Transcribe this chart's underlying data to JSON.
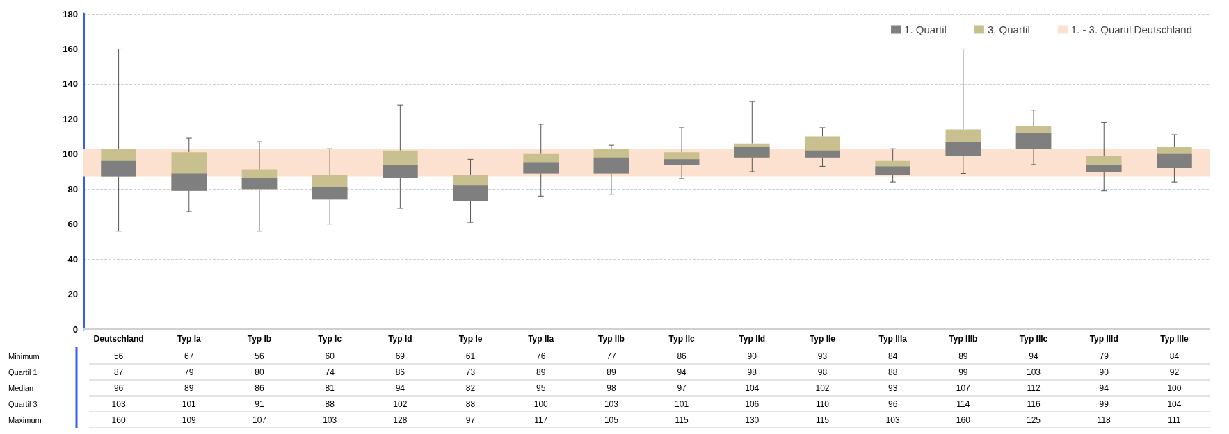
{
  "chart_data": {
    "type": "box",
    "categories": [
      "Deutschland",
      "Typ Ia",
      "Typ Ib",
      "Typ Ic",
      "Typ Id",
      "Typ Ie",
      "Typ IIa",
      "Typ IIb",
      "Typ IIc",
      "Typ IId",
      "Typ IIe",
      "Typ IIIa",
      "Typ IIIb",
      "Typ IIIc",
      "Typ IIId",
      "Typ IIIe"
    ],
    "series": [
      {
        "name": "1. Quartil",
        "color": "#7f7f7f",
        "boxes": [
          {
            "low": 56,
            "q1": 87,
            "median": 96,
            "q3": 103,
            "high": 160
          },
          {
            "low": 67,
            "q1": 79,
            "median": 89,
            "q3": 101,
            "high": 109
          },
          {
            "low": 56,
            "q1": 80,
            "median": 86,
            "q3": 91,
            "high": 107
          },
          {
            "low": 60,
            "q1": 74,
            "median": 81,
            "q3": 88,
            "high": 103
          },
          {
            "low": 69,
            "q1": 86,
            "median": 94,
            "q3": 102,
            "high": 128
          },
          {
            "low": 61,
            "q1": 73,
            "median": 82,
            "q3": 88,
            "high": 97
          },
          {
            "low": 76,
            "q1": 89,
            "median": 95,
            "q3": 100,
            "high": 117
          },
          {
            "low": 77,
            "q1": 89,
            "median": 98,
            "q3": 103,
            "high": 105
          },
          {
            "low": 86,
            "q1": 94,
            "median": 97,
            "q3": 101,
            "high": 115
          },
          {
            "low": 90,
            "q1": 98,
            "median": 104,
            "q3": 106,
            "high": 130
          },
          {
            "low": 93,
            "q1": 98,
            "median": 102,
            "q3": 110,
            "high": 115
          },
          {
            "low": 84,
            "q1": 88,
            "median": 93,
            "q3": 96,
            "high": 103
          },
          {
            "low": 89,
            "q1": 99,
            "median": 107,
            "q3": 114,
            "high": 160
          },
          {
            "low": 94,
            "q1": 103,
            "median": 112,
            "q3": 116,
            "high": 125
          },
          {
            "low": 79,
            "q1": 90,
            "median": 94,
            "q3": 99,
            "high": 118
          },
          {
            "low": 84,
            "q1": 92,
            "median": 100,
            "q3": 104,
            "high": 111
          }
        ]
      },
      {
        "name": "3. Quartil",
        "color": "#c8c08e",
        "boxes": [
          {
            "low": 56,
            "q1": 87,
            "median": 96,
            "q3": 103,
            "high": 160
          },
          {
            "low": 67,
            "q1": 79,
            "median": 89,
            "q3": 101,
            "high": 109
          },
          {
            "low": 56,
            "q1": 80,
            "median": 86,
            "q3": 91,
            "high": 107
          },
          {
            "low": 60,
            "q1": 74,
            "median": 81,
            "q3": 88,
            "high": 103
          },
          {
            "low": 69,
            "q1": 86,
            "median": 94,
            "q3": 102,
            "high": 128
          },
          {
            "low": 61,
            "q1": 73,
            "median": 82,
            "q3": 88,
            "high": 97
          },
          {
            "low": 76,
            "q1": 89,
            "median": 95,
            "q3": 100,
            "high": 117
          },
          {
            "low": 77,
            "q1": 89,
            "median": 98,
            "q3": 103,
            "high": 105
          },
          {
            "low": 86,
            "q1": 94,
            "median": 97,
            "q3": 101,
            "high": 115
          },
          {
            "low": 90,
            "q1": 98,
            "median": 104,
            "q3": 106,
            "high": 130
          },
          {
            "low": 93,
            "q1": 98,
            "median": 102,
            "q3": 110,
            "high": 115
          },
          {
            "low": 84,
            "q1": 88,
            "median": 93,
            "q3": 96,
            "high": 103
          },
          {
            "low": 89,
            "q1": 99,
            "median": 107,
            "q3": 114,
            "high": 160
          },
          {
            "low": 94,
            "q1": 103,
            "median": 112,
            "q3": 116,
            "high": 125
          },
          {
            "low": 79,
            "q1": 90,
            "median": 94,
            "q3": 99,
            "high": 118
          },
          {
            "low": 84,
            "q1": 92,
            "median": 100,
            "q3": 104,
            "high": 111
          }
        ]
      }
    ],
    "bands": [
      {
        "axis": "y",
        "from": 87,
        "to": 103,
        "label": "1. - 3. Quartil Deutschland",
        "color": "#fde1d0"
      }
    ],
    "ylim": [
      0,
      180
    ],
    "yticks": [
      0,
      20,
      40,
      60,
      80,
      100,
      120,
      140,
      160,
      180
    ],
    "grid": "y",
    "legend": "top right",
    "data_labels": true,
    "annotations": [
      "Minimum",
      "Quartil 1",
      "Median",
      "Quartil 3",
      "Maximum",
      "56",
      "67",
      "56",
      "60",
      "69",
      "61",
      "76",
      "77",
      "86",
      "90",
      "93",
      "84",
      "89",
      "94",
      "79",
      "84",
      "87",
      "79",
      "80",
      "74",
      "86",
      "73",
      "89",
      "89",
      "94",
      "98",
      "98",
      "88",
      "99",
      "103",
      "90",
      "92",
      "96",
      "89",
      "86",
      "81",
      "94",
      "82",
      "95",
      "98",
      "97",
      "104",
      "102",
      "93",
      "107",
      "112",
      "94",
      "100",
      "103",
      "101",
      "91",
      "88",
      "102",
      "88",
      "100",
      "103",
      "101",
      "106",
      "110",
      "96",
      "114",
      "116",
      "99",
      "104",
      "160",
      "109",
      "107",
      "103",
      "128",
      "97",
      "117",
      "105",
      "115",
      "130",
      "115",
      "103",
      "160",
      "125",
      "118",
      "111"
    ]
  }
}
